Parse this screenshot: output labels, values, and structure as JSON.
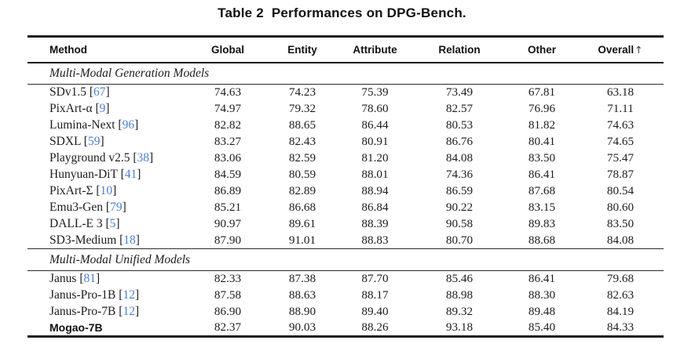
{
  "title": {
    "prefix": "Table 2",
    "text": "Performances on DPG-Bench."
  },
  "colors": {
    "citation_blue": "#4c80d0",
    "text": "#1c1c1c"
  },
  "table": {
    "columns": [
      "Method",
      "Global",
      "Entity",
      "Attribute",
      "Relation",
      "Other",
      "Overall↑"
    ],
    "sections": [
      {
        "label": "Multi-Modal Generation Models",
        "rows": [
          {
            "method": "SDv1.5",
            "cite": "67",
            "values": [
              "74.63",
              "74.23",
              "75.39",
              "73.49",
              "67.81",
              "63.18"
            ]
          },
          {
            "method": "PixArt-α",
            "cite": "9",
            "values": [
              "74.97",
              "79.32",
              "78.60",
              "82.57",
              "76.96",
              "71.11"
            ]
          },
          {
            "method": "Lumina-Next",
            "cite": "96",
            "values": [
              "82.82",
              "88.65",
              "86.44",
              "80.53",
              "81.82",
              "74.63"
            ]
          },
          {
            "method": "SDXL",
            "cite": "59",
            "values": [
              "83.27",
              "82.43",
              "80.91",
              "86.76",
              "80.41",
              "74.65"
            ]
          },
          {
            "method": "Playground v2.5",
            "cite": "38",
            "values": [
              "83.06",
              "82.59",
              "81.20",
              "84.08",
              "83.50",
              "75.47"
            ]
          },
          {
            "method": "Hunyuan-DiT",
            "cite": "41",
            "values": [
              "84.59",
              "80.59",
              "88.01",
              "74.36",
              "86.41",
              "78.87"
            ]
          },
          {
            "method": "PixArt-Σ",
            "cite": "10",
            "values": [
              "86.89",
              "82.89",
              "88.94",
              "86.59",
              "87.68",
              "80.54"
            ]
          },
          {
            "method": "Emu3-Gen",
            "cite": "79",
            "values": [
              "85.21",
              "86.68",
              "86.84",
              "90.22",
              "83.15",
              "80.60"
            ]
          },
          {
            "method": "DALL-E 3",
            "cite": "5",
            "values": [
              "90.97",
              "89.61",
              "88.39",
              "90.58",
              "89.83",
              "83.50"
            ]
          },
          {
            "method": "SD3-Medium",
            "cite": "18",
            "values": [
              "87.90",
              "91.01",
              "88.83",
              "80.70",
              "88.68",
              "84.08"
            ]
          }
        ]
      },
      {
        "label": "Multi-Modal Unified Models",
        "rows": [
          {
            "method": "Janus",
            "cite": "81",
            "values": [
              "82.33",
              "87.38",
              "87.70",
              "85.46",
              "86.41",
              "79.68"
            ]
          },
          {
            "method": "Janus-Pro-1B",
            "cite": "12",
            "values": [
              "87.58",
              "88.63",
              "88.17",
              "88.98",
              "88.30",
              "82.63"
            ]
          },
          {
            "method": "Janus-Pro-7B",
            "cite": "12",
            "values": [
              "86.90",
              "88.90",
              "89.40",
              "89.32",
              "89.48",
              "84.19"
            ]
          },
          {
            "method": "Mogao-7B",
            "cite": null,
            "highlight": true,
            "values": [
              "82.37",
              "90.03",
              "88.26",
              "93.18",
              "85.40",
              "84.33"
            ]
          }
        ]
      }
    ]
  }
}
